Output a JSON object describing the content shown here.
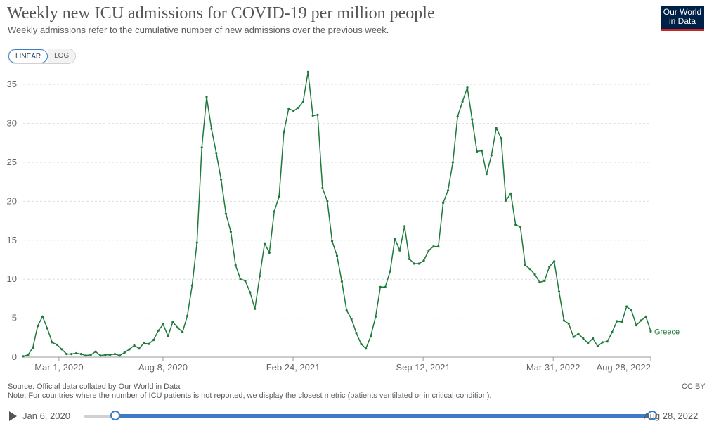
{
  "header": {
    "title": "Weekly new ICU admissions for COVID-19 per million people",
    "subtitle": "Weekly admissions refer to the cumulative number of new admissions over the previous week.",
    "logo_line1": "Our World",
    "logo_line2": "in Data"
  },
  "controls": {
    "linear_label": "LINEAR",
    "log_label": "LOG",
    "selected": "LINEAR"
  },
  "colors": {
    "series": "#1d7a3a",
    "accent": "#3d7bc4",
    "logo_bg": "#002147",
    "logo_bar": "#ce261e"
  },
  "footer": {
    "source": "Source: Official data collated by Our World in Data",
    "note": "Note: For countries where the number of ICU patients is not reported, we display the closest metric (patients ventilated or in critical condition).",
    "license": "CC BY"
  },
  "timeline": {
    "start_label": "Jan 6, 2020",
    "end_label": "Aug 28, 2022",
    "play_icon": "play-icon"
  },
  "chart_data": {
    "type": "line",
    "title": "Weekly new ICU admissions for COVID-19 per million people",
    "xlabel": "",
    "ylabel": "",
    "ylim": [
      0,
      37
    ],
    "yticks": [
      0,
      5,
      10,
      15,
      20,
      25,
      30,
      35
    ],
    "xticks": [
      "Mar 1, 2020",
      "Aug 8, 2020",
      "Feb 24, 2021",
      "Sep 12, 2021",
      "Mar 31, 2022",
      "Aug 28, 2022"
    ],
    "grid": true,
    "x_start": "2020-01-06",
    "x_end": "2022-08-28",
    "series": [
      {
        "name": "Greece",
        "values": [
          0.1,
          0.3,
          1.2,
          4.0,
          5.2,
          3.7,
          1.9,
          1.6,
          1.0,
          0.4,
          0.4,
          0.5,
          0.4,
          0.2,
          0.3,
          0.7,
          0.2,
          0.3,
          0.3,
          0.4,
          0.2,
          0.6,
          1.0,
          1.5,
          1.1,
          1.8,
          1.7,
          2.2,
          3.4,
          4.2,
          2.7,
          4.5,
          3.8,
          3.2,
          5.3,
          9.2,
          14.7,
          26.9,
          33.4,
          29.3,
          26.2,
          22.8,
          18.4,
          16.1,
          11.8,
          10.0,
          9.8,
          8.3,
          6.2,
          10.4,
          14.6,
          13.4,
          18.7,
          20.6,
          28.9,
          31.9,
          31.6,
          32.0,
          32.8,
          36.6,
          31.0,
          31.1,
          21.7,
          20.0,
          14.9,
          13.0,
          9.7,
          6.0,
          4.9,
          3.1,
          1.7,
          1.1,
          2.7,
          5.2,
          9.0,
          9.0,
          11.0,
          15.2,
          13.7,
          16.8,
          12.6,
          12.0,
          12.0,
          12.4,
          13.7,
          14.2,
          14.2,
          19.8,
          21.4,
          25.0,
          30.9,
          32.8,
          34.6,
          30.5,
          26.4,
          26.5,
          23.5,
          25.9,
          29.4,
          28.1,
          20.1,
          21.0,
          17.0,
          16.7,
          11.8,
          11.3,
          10.6,
          9.6,
          9.8,
          11.6,
          12.3,
          8.4,
          4.7,
          4.3,
          2.6,
          3.0,
          2.4,
          1.8,
          2.4,
          1.4,
          1.9,
          2.0,
          3.2,
          4.6,
          4.5,
          6.5,
          6.0,
          4.1,
          4.7,
          5.2,
          3.3
        ]
      }
    ]
  }
}
